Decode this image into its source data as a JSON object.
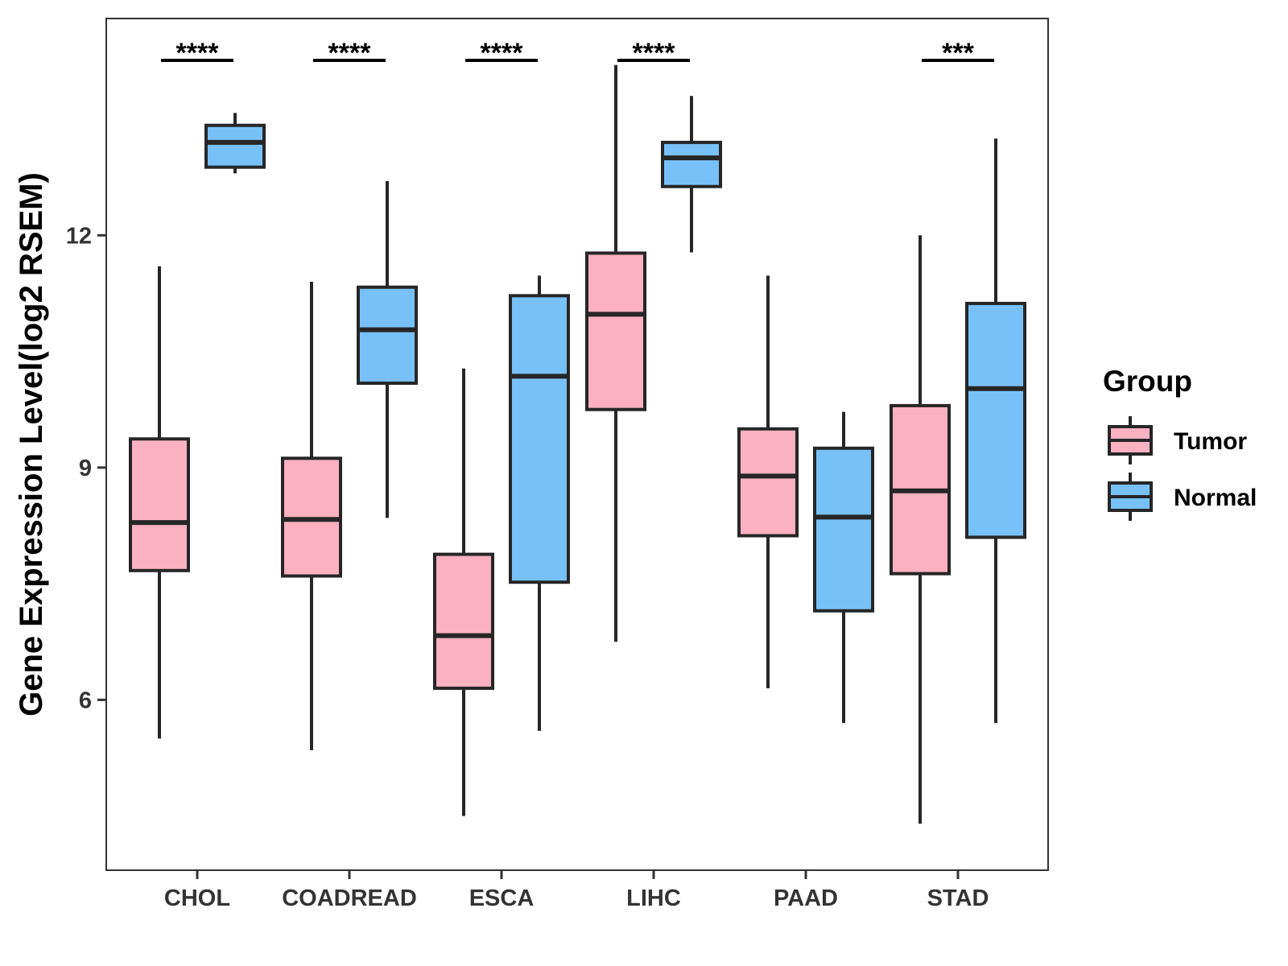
{
  "chart_data": {
    "type": "boxplot",
    "title": "",
    "xlabel": "",
    "ylabel": "Gene Expression Level(log2 RSEM)",
    "ylim": [
      3.8,
      14.8
    ],
    "yticks": [
      6,
      9,
      12
    ],
    "grid": false,
    "categories": [
      "CHOL",
      "COADREAD",
      "ESCA",
      "LIHC",
      "PAAD",
      "STAD"
    ],
    "significance": [
      "****",
      "****",
      "****",
      "****",
      "",
      "***"
    ],
    "legend": {
      "title": "Group",
      "position": "right",
      "entries": [
        {
          "name": "Tumor",
          "color": "#fbb1c1"
        },
        {
          "name": "Normal",
          "color": "#78c1f8"
        }
      ]
    },
    "series": [
      {
        "name": "Tumor",
        "color": "#fbb1c1",
        "boxes": [
          {
            "min": 5.5,
            "q1": 7.67,
            "median": 8.29,
            "q3": 9.37,
            "max": 11.6
          },
          {
            "min": 5.35,
            "q1": 7.6,
            "median": 8.33,
            "q3": 9.12,
            "max": 11.4
          },
          {
            "min": 4.5,
            "q1": 6.15,
            "median": 6.83,
            "q3": 7.88,
            "max": 10.28
          },
          {
            "min": 6.75,
            "q1": 9.75,
            "median": 10.98,
            "q3": 11.77,
            "max": 14.2
          },
          {
            "min": 6.15,
            "q1": 8.12,
            "median": 8.89,
            "q3": 9.5,
            "max": 11.48
          },
          {
            "min": 4.4,
            "q1": 7.63,
            "median": 8.7,
            "q3": 9.8,
            "max": 12.0
          }
        ]
      },
      {
        "name": "Normal",
        "color": "#78c1f8",
        "boxes": [
          {
            "min": 12.8,
            "q1": 12.88,
            "median": 13.2,
            "q3": 13.42,
            "max": 13.58
          },
          {
            "min": 8.35,
            "q1": 10.09,
            "median": 10.78,
            "q3": 11.33,
            "max": 12.7
          },
          {
            "min": 5.6,
            "q1": 7.52,
            "median": 10.18,
            "q3": 11.22,
            "max": 11.48
          },
          {
            "min": 11.78,
            "q1": 12.63,
            "median": 13.0,
            "q3": 13.2,
            "max": 13.8
          },
          {
            "min": 5.7,
            "q1": 7.15,
            "median": 8.36,
            "q3": 9.25,
            "max": 9.72
          },
          {
            "min": 5.7,
            "q1": 8.1,
            "median": 10.02,
            "q3": 11.12,
            "max": 13.25
          }
        ]
      }
    ]
  }
}
